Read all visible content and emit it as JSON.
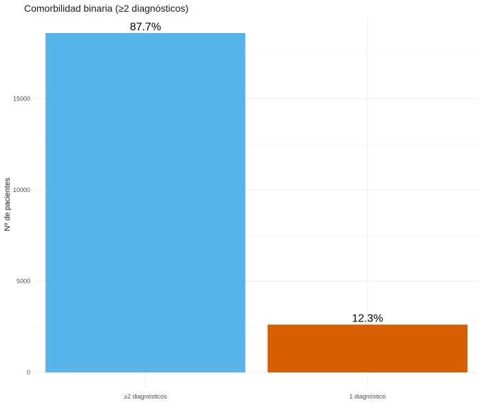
{
  "chart_data": {
    "type": "bar",
    "title": "Comorbilidad binaria (≥2 diagnósticos)",
    "xlabel": "",
    "ylabel": "Nº de pacientes",
    "categories": [
      "≥2 diagnósticos",
      "1 diagnóstico"
    ],
    "values": [
      18600,
      2620
    ],
    "data_labels": [
      "87.7%",
      "12.3%"
    ],
    "colors": [
      "#56B4E9",
      "#D55E00"
    ],
    "ylim": [
      0,
      18600
    ],
    "y_ticks": [
      0,
      5000,
      10000,
      15000
    ],
    "y_tick_labels": [
      "0",
      "5000",
      "10000",
      "15000"
    ],
    "grid": true,
    "legend": "none"
  }
}
